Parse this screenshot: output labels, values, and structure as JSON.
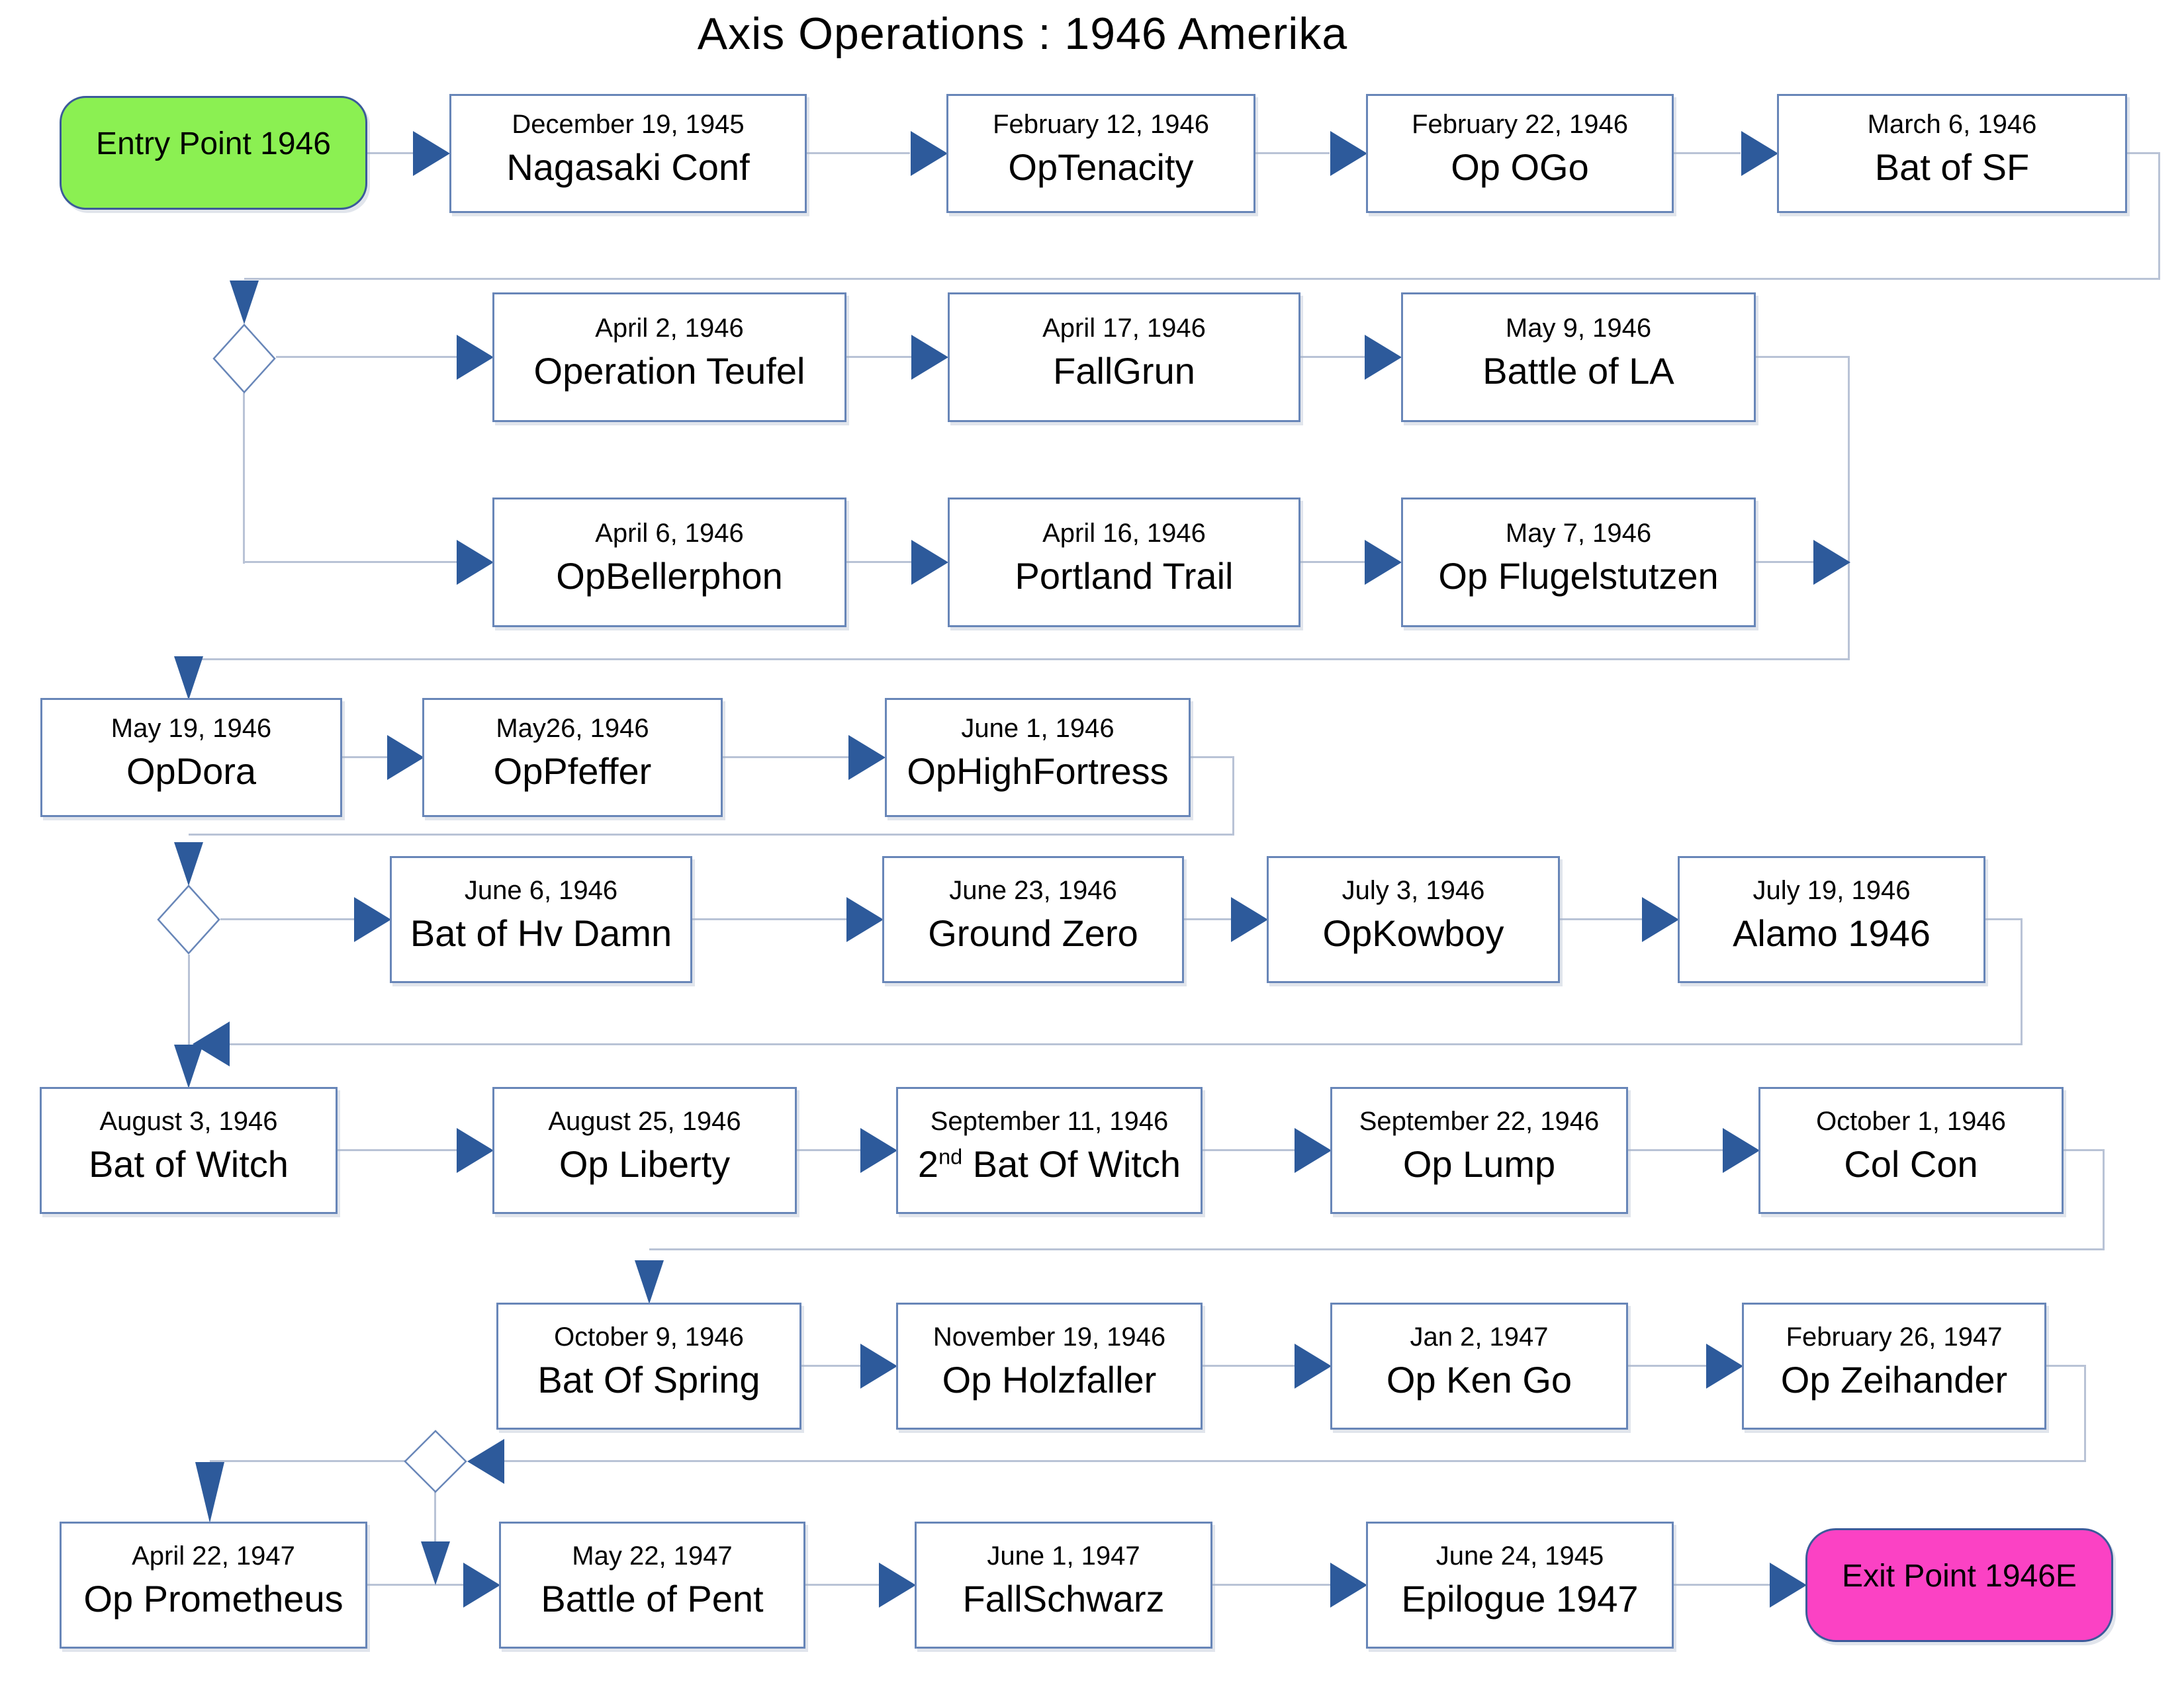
{
  "title": "Axis Operations : 1946 Amerika",
  "entry": {
    "label": "Entry Point 1946"
  },
  "exit": {
    "label": "Exit Point 1946E"
  },
  "colors": {
    "entry_fill": "#8bf052",
    "exit_fill": "#fb42c4",
    "arrowhead": "#2d5a9b",
    "connector_line": "#b9c3d6",
    "box_border": "#6886b8"
  },
  "nodes": [
    {
      "date": "December 19, 1945",
      "name": "Nagasaki Conf"
    },
    {
      "date": "February 12, 1946",
      "name": "OpTenacity"
    },
    {
      "date": "February 22, 1946",
      "name": "Op OGo"
    },
    {
      "date": "March 6, 1946",
      "name": "Bat of SF"
    },
    {
      "date": "April 2, 1946",
      "name": "Operation Teufel"
    },
    {
      "date": "April 17, 1946",
      "name": "FallGrun"
    },
    {
      "date": "May 9, 1946",
      "name": "Battle of LA"
    },
    {
      "date": "April 6, 1946",
      "name": "OpBellerphon"
    },
    {
      "date": "April 16, 1946",
      "name": "Portland Trail"
    },
    {
      "date": "May 7, 1946",
      "name": "Op Flugelstutzen"
    },
    {
      "date": "May 19, 1946",
      "name": "OpDora"
    },
    {
      "date": "May26, 1946",
      "name": "OpPfeffer"
    },
    {
      "date": "June 1, 1946",
      "name": "OpHighFortress"
    },
    {
      "date": "June 6, 1946",
      "name": "Bat of Hv Damn"
    },
    {
      "date": "June 23, 1946",
      "name": "Ground Zero"
    },
    {
      "date": "July 3, 1946",
      "name": "OpKowboy"
    },
    {
      "date": "July 19, 1946",
      "name": "Alamo 1946"
    },
    {
      "date": "August 3, 1946",
      "name": "Bat of Witch"
    },
    {
      "date": "August 25, 1946",
      "name": "Op Liberty"
    },
    {
      "date": "September 11, 1946",
      "name_pre": "2",
      "name_sup": "nd",
      "name_post": " Bat Of Witch"
    },
    {
      "date": "September 22, 1946",
      "name": "Op Lump"
    },
    {
      "date": "October 1, 1946",
      "name": "Col Con"
    },
    {
      "date": "October 9, 1946",
      "name": "Bat Of Spring"
    },
    {
      "date": "November 19, 1946",
      "name": "Op Holzfaller"
    },
    {
      "date": "Jan 2, 1947",
      "name": "Op Ken Go"
    },
    {
      "date": "February 26, 1947",
      "name": "Op Zeihander"
    },
    {
      "date": "April 22, 1947",
      "name": "Op Prometheus"
    },
    {
      "date": "May 22, 1947",
      "name": "Battle of Pent"
    },
    {
      "date": "June 1, 1947",
      "name": "FallSchwarz"
    },
    {
      "date": "June 24, 1945",
      "name": "Epilogue 1947"
    }
  ]
}
